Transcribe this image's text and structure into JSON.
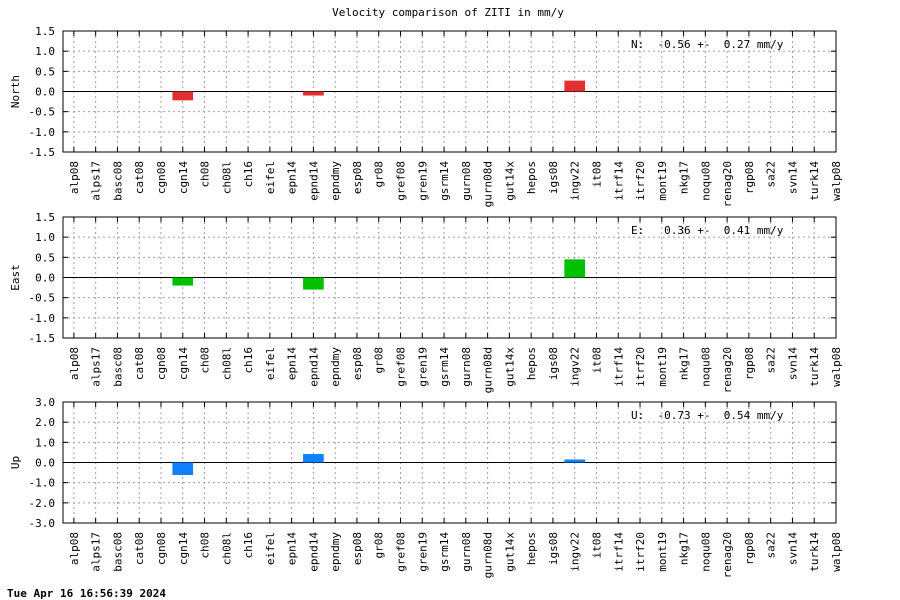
{
  "title": "Velocity comparison of ZITI in mm/y",
  "timestamp": "Tue Apr 16 16:56:39 2024",
  "chart_data": [
    {
      "type": "bar",
      "ylabel": "North",
      "ylim": [
        -1.5,
        1.5
      ],
      "yticks": [
        "1.5",
        "1.0",
        "0.5",
        "0.0",
        "-0.5",
        "-1.0",
        "-1.5"
      ],
      "grid": true,
      "annotation": "N:  -0.56 +-  0.27 mm/y",
      "color": "#e03030",
      "categories": [
        "alp08",
        "alps17",
        "basc08",
        "cat08",
        "cgn08",
        "cgn14",
        "ch08",
        "ch08l",
        "ch16",
        "eifel",
        "epn14",
        "epnd14",
        "epndmy",
        "esp08",
        "gr08",
        "gref08",
        "gren19",
        "gsrm14",
        "gurn08",
        "gurn08d",
        "gut14x",
        "hepos",
        "igs08",
        "ingv22",
        "it08",
        "itrf14",
        "itrf20",
        "mont19",
        "nkg17",
        "noqu08",
        "renag20",
        "rgp08",
        "sa22",
        "svn14",
        "turk14",
        "walp08"
      ],
      "values": [
        null,
        null,
        null,
        null,
        null,
        -0.22,
        null,
        null,
        null,
        null,
        null,
        -0.1,
        null,
        null,
        null,
        null,
        null,
        null,
        null,
        null,
        null,
        null,
        null,
        0.27,
        null,
        null,
        null,
        null,
        null,
        null,
        null,
        null,
        null,
        null,
        null,
        null
      ]
    },
    {
      "type": "bar",
      "ylabel": "East",
      "ylim": [
        -1.5,
        1.5
      ],
      "yticks": [
        "1.5",
        "1.0",
        "0.5",
        "0.0",
        "-0.5",
        "-1.0",
        "-1.5"
      ],
      "grid": true,
      "annotation": "E:   0.36 +-  0.41 mm/y",
      "color": "#00c000",
      "categories": [
        "alp08",
        "alps17",
        "basc08",
        "cat08",
        "cgn08",
        "cgn14",
        "ch08",
        "ch08l",
        "ch16",
        "eifel",
        "epn14",
        "epnd14",
        "epndmy",
        "esp08",
        "gr08",
        "gref08",
        "gren19",
        "gsrm14",
        "gurn08",
        "gurn08d",
        "gut14x",
        "hepos",
        "igs08",
        "ingv22",
        "it08",
        "itrf14",
        "itrf20",
        "mont19",
        "nkg17",
        "noqu08",
        "renag20",
        "rgp08",
        "sa22",
        "svn14",
        "turk14",
        "walp08"
      ],
      "values": [
        null,
        null,
        null,
        null,
        null,
        -0.2,
        null,
        null,
        null,
        null,
        null,
        -0.3,
        null,
        null,
        null,
        null,
        null,
        null,
        null,
        null,
        null,
        null,
        null,
        0.45,
        null,
        null,
        null,
        null,
        null,
        null,
        null,
        null,
        null,
        null,
        null,
        null
      ]
    },
    {
      "type": "bar",
      "ylabel": "Up",
      "ylim": [
        -3.0,
        3.0
      ],
      "yticks": [
        "3.0",
        "2.0",
        "1.0",
        "0.0",
        "-1.0",
        "-2.0",
        "-3.0"
      ],
      "grid": true,
      "annotation": "U:  -0.73 +-  0.54 mm/y",
      "color": "#1080ff",
      "categories": [
        "alp08",
        "alps17",
        "basc08",
        "cat08",
        "cgn08",
        "cgn14",
        "ch08",
        "ch08l",
        "ch16",
        "eifel",
        "epn14",
        "epnd14",
        "epndmy",
        "esp08",
        "gr08",
        "gref08",
        "gren19",
        "gsrm14",
        "gurn08",
        "gurn08d",
        "gut14x",
        "hepos",
        "igs08",
        "ingv22",
        "it08",
        "itrf14",
        "itrf20",
        "mont19",
        "nkg17",
        "noqu08",
        "renag20",
        "rgp08",
        "sa22",
        "svn14",
        "turk14",
        "walp08"
      ],
      "values": [
        null,
        null,
        null,
        null,
        null,
        -0.62,
        null,
        null,
        null,
        null,
        null,
        0.42,
        null,
        null,
        null,
        null,
        null,
        null,
        null,
        null,
        null,
        null,
        null,
        0.15,
        null,
        null,
        null,
        null,
        null,
        null,
        null,
        null,
        null,
        null,
        null,
        null
      ]
    }
  ]
}
